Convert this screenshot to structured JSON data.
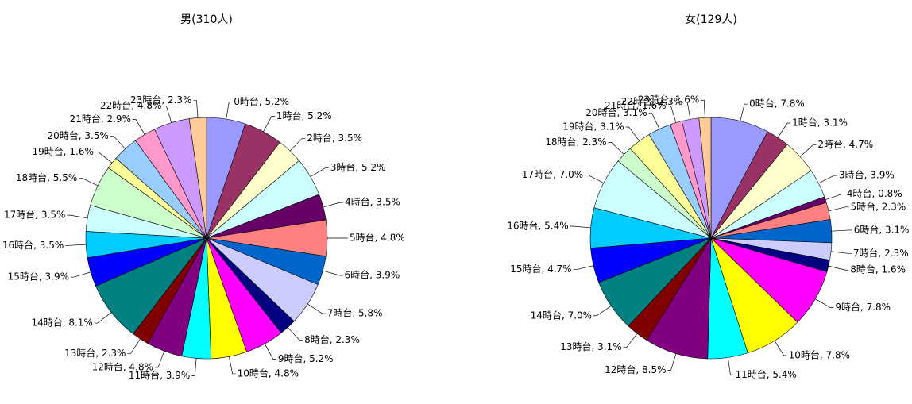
{
  "chart_data": [
    {
      "type": "pie",
      "title": "男(310人)",
      "values": [
        5.2,
        5.2,
        3.5,
        5.2,
        3.5,
        4.8,
        3.9,
        5.8,
        2.3,
        5.2,
        4.8,
        3.9,
        4.8,
        2.3,
        8.1,
        3.9,
        3.5,
        3.5,
        5.5,
        1.6,
        3.5,
        2.9,
        4.8,
        2.3
      ],
      "value_labels": [
        "0時台, 5.2%",
        "1時台, 5.2%",
        "2時台, 3.5%",
        "3時台, 5.2%",
        "4時台, 3.5%",
        "5時台, 4.8%",
        "6時台, 3.9%",
        "7時台, 5.8%",
        "8時台, 2.3%",
        "9時台, 5.2%",
        "10時台, 4.8%",
        "11時台, 3.9%",
        "12時台, 4.8%",
        "13時台, 2.3%",
        "14時台, 8.1%",
        "15時台, 3.9%",
        "16時台, 3.5%",
        "17時台, 3.5%",
        "18時台, 5.5%",
        "19時台, 1.6%",
        "20時台, 3.5%",
        "21時台, 2.9%",
        "22時台, 4.8%",
        "23時台, 2.3%"
      ],
      "colors": [
        "#9999FF",
        "#993366",
        "#FFFFCC",
        "#CCFFFF",
        "#660066",
        "#FF8080",
        "#0066CC",
        "#CCCCFF",
        "#000080",
        "#FF00FF",
        "#FFFF00",
        "#00FFFF",
        "#800080",
        "#800000",
        "#008080",
        "#0000FF",
        "#00CCFF",
        "#CCFFFF",
        "#CCFFCC",
        "#FFFF99",
        "#99CCFF",
        "#FF99CC",
        "#CC99FF",
        "#FFCC99"
      ]
    },
    {
      "type": "pie",
      "title": "女(129人)",
      "values": [
        7.8,
        3.1,
        4.7,
        3.9,
        0.8,
        2.3,
        3.1,
        2.3,
        1.6,
        7.8,
        7.8,
        5.4,
        8.5,
        3.1,
        7.0,
        4.7,
        5.4,
        7.0,
        2.3,
        3.1,
        3.1,
        1.6,
        2.3,
        1.6
      ],
      "value_labels": [
        "0時台, 7.8%",
        "1時台, 3.1%",
        "2時台, 4.7%",
        "3時台, 3.9%",
        "4時台, 0.8%",
        "5時台, 2.3%",
        "6時台, 3.1%",
        "7時台, 2.3%",
        "8時台, 1.6%",
        "9時台, 7.8%",
        "10時台, 7.8%",
        "11時台, 5.4%",
        "12時台, 8.5%",
        "13時台, 3.1%",
        "14時台, 7.0%",
        "15時台, 4.7%",
        "16時台, 5.4%",
        "17時台, 7.0%",
        "18時台, 2.3%",
        "19時台, 3.1%",
        "20時台, 3.1%",
        "21時台, 1.6%",
        "22時台, 2.3%",
        "23時台, 1.6%"
      ],
      "colors": [
        "#9999FF",
        "#993366",
        "#FFFFCC",
        "#CCFFFF",
        "#660066",
        "#FF8080",
        "#0066CC",
        "#CCCCFF",
        "#000080",
        "#FF00FF",
        "#FFFF00",
        "#00FFFF",
        "#800080",
        "#800000",
        "#008080",
        "#0000FF",
        "#00CCFF",
        "#CCFFFF",
        "#CCFFCC",
        "#FFFF99",
        "#99CCFF",
        "#FF99CC",
        "#CC99FF",
        "#FFCC99"
      ]
    }
  ]
}
